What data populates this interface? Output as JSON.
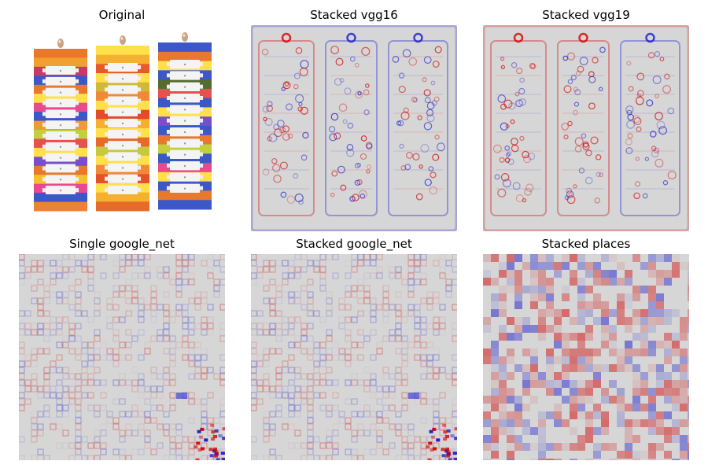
{
  "panels": [
    {
      "title": "Original",
      "kind": "photo"
    },
    {
      "title": "Stacked vgg16",
      "kind": "heatmap-structured"
    },
    {
      "title": "Stacked vgg19",
      "kind": "heatmap-structured"
    },
    {
      "title": "Single google_net",
      "kind": "heatmap-grid"
    },
    {
      "title": "Stacked google_net",
      "kind": "heatmap-grid"
    },
    {
      "title": "Stacked places",
      "kind": "heatmap-blocky"
    }
  ],
  "colors": {
    "background": "#d6d6d6",
    "positive": "#d40000",
    "negative": "#1a1acc"
  }
}
